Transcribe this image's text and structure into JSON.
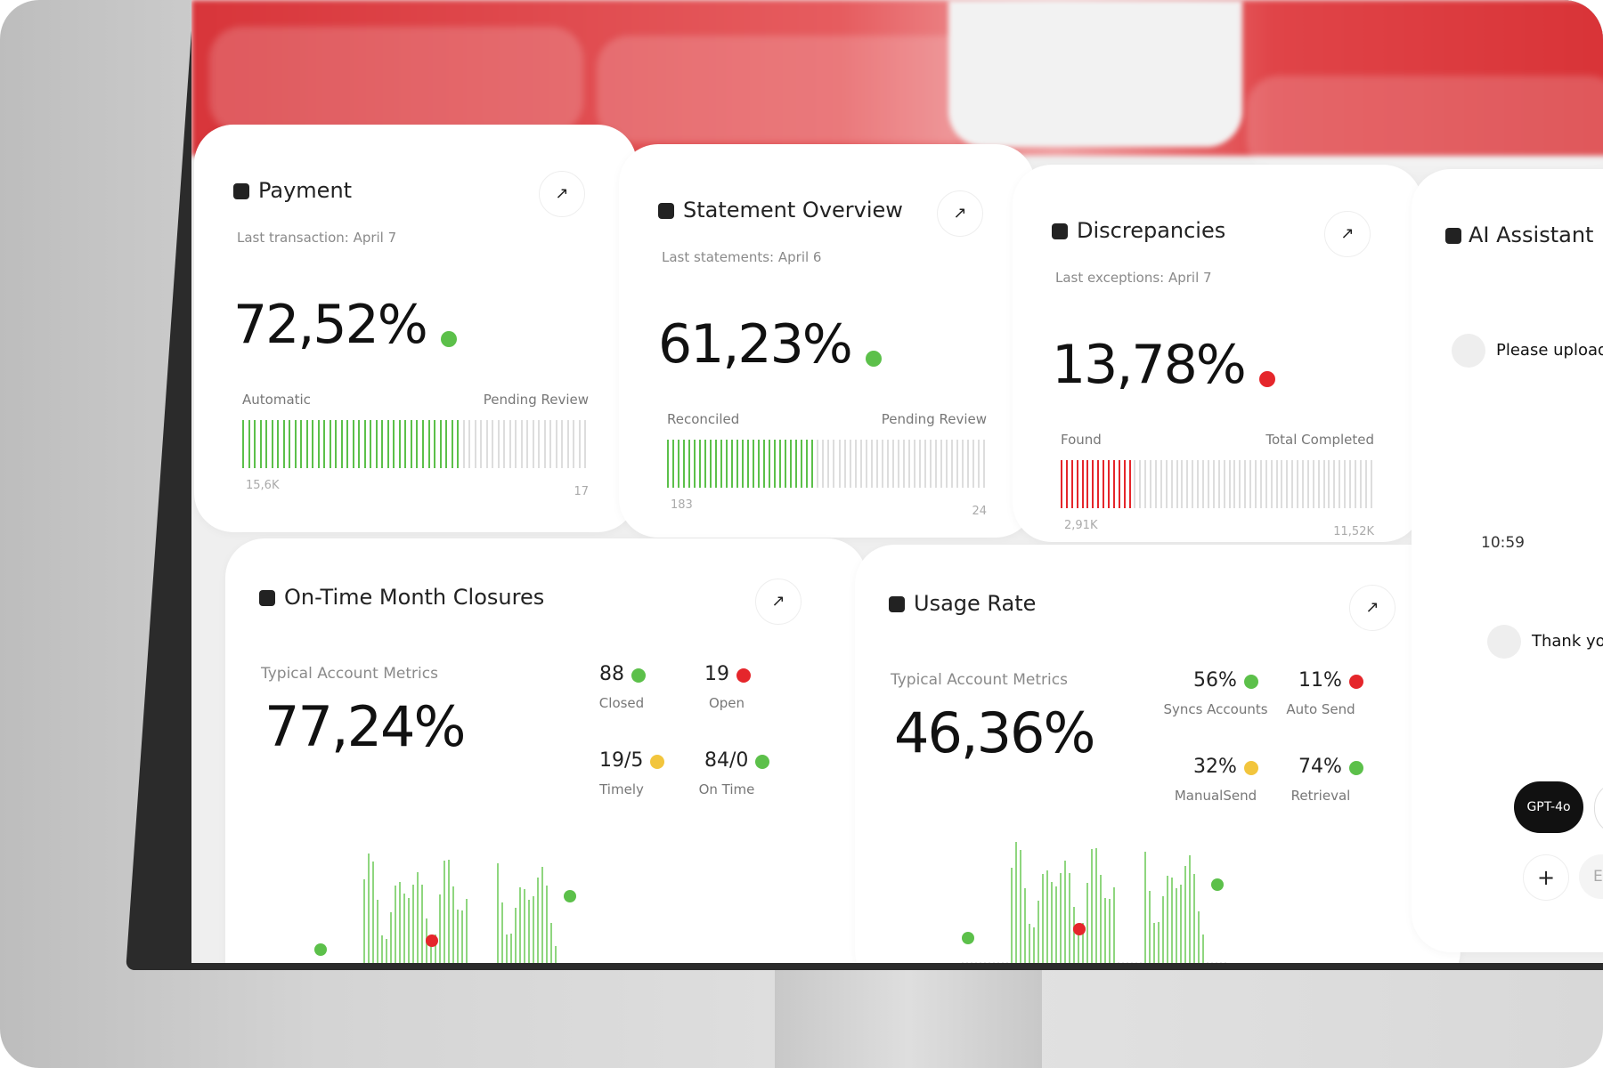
{
  "cards": [
    {
      "title": "Payment",
      "subtitle": "Last transaction: April 7",
      "value": "72,52%",
      "left_label": "Automatic",
      "right_label": "Pending Review",
      "left_count": "15,6K",
      "right_count": "17"
    },
    {
      "title": "Statement Overview",
      "subtitle": "Last statements: April 6",
      "value": "61,23%",
      "left_label": "Reconciled",
      "right_label": "Pending Review",
      "left_count": "183",
      "right_count": "24"
    },
    {
      "title": "Discrepancies",
      "subtitle": "Last exceptions: April 7",
      "value": "13,78%",
      "left_label": "Found",
      "right_label": "Total Completed",
      "left_count": "2,91K",
      "right_count": "11,52K"
    }
  ],
  "panels": [
    {
      "title": "On-Time Month Closures",
      "subtitle": "Typical Account Metrics",
      "value": "77,24%",
      "metrics": [
        {
          "value": "88",
          "label": "Closed"
        },
        {
          "value": "19",
          "label": "Open"
        },
        {
          "value": "19/5",
          "label": "Timely"
        },
        {
          "value": "84/0",
          "label": "On Time"
        }
      ]
    },
    {
      "title": "Usage Rate",
      "subtitle": "Typical Account Metrics",
      "value": "46,36%",
      "metrics": [
        {
          "value": "56%",
          "label": "Syncs Accounts"
        },
        {
          "value": "11%",
          "label": "Auto Send"
        },
        {
          "value": "32%",
          "label": "ManualSend"
        },
        {
          "value": "74%",
          "label": "Retrieval"
        }
      ]
    }
  ],
  "assistant": {
    "title": "AI Assistant",
    "messages": [
      "Please upload a",
      "Thank you!"
    ],
    "time": "10:59",
    "model": "GPT-4o",
    "input_placeholder": "Ente"
  }
}
